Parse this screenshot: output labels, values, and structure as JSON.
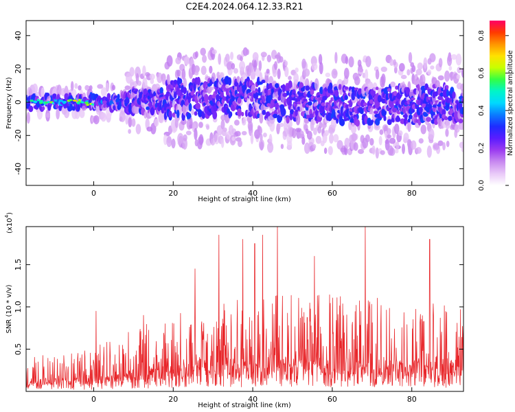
{
  "title": "C2E4.2024.064.12.33.R21",
  "colors": {
    "snr_line": "#e8262a",
    "colormap": [
      "#ffffff",
      "#e9c9f8",
      "#c88af0",
      "#9b3cf0",
      "#5a1cff",
      "#1e2cff",
      "#0a7cff",
      "#00d9ff",
      "#00f5c8",
      "#33ff44",
      "#c8ff00",
      "#ffe100",
      "#ff9400",
      "#ff3a00",
      "#ff0066"
    ]
  },
  "chart_data": [
    {
      "type": "heatmap",
      "xlabel": "Height of straight line (km)",
      "ylabel": "Frequency (Hz)",
      "xlim": [
        -17,
        93
      ],
      "ylim": [
        -50,
        49
      ],
      "xticks": [
        0,
        20,
        40,
        60,
        80
      ],
      "yticks": [
        -40,
        -20,
        0,
        20,
        40
      ],
      "colorbar": {
        "label": "Normalized spectral amplitude",
        "range": [
          0,
          0.88
        ],
        "ticks": [
          "0.0",
          "0.2",
          "0.4",
          "0.6",
          "0.8"
        ]
      },
      "ridges": [
        {
          "x": -15,
          "f": 0.0,
          "amp": 0.55
        },
        {
          "x": -12,
          "f": 0.5,
          "amp": 0.6
        },
        {
          "x": -9,
          "f": 0.0,
          "amp": 0.55
        },
        {
          "x": -5,
          "f": 0.5,
          "amp": 0.7
        },
        {
          "x": -2,
          "f": -1.0,
          "amp": 0.6
        },
        {
          "x": 5,
          "f": 0.0,
          "amp": 0.45
        },
        {
          "x": 12,
          "f": 3.0,
          "amp": 0.35
        },
        {
          "x": 18,
          "f": 4.0,
          "amp": 0.35
        },
        {
          "x": 28,
          "f": 12.0,
          "amp": 0.3
        },
        {
          "x": 42,
          "f": 8.0,
          "amp": 0.3
        },
        {
          "x": 47,
          "f": 0.0,
          "amp": 0.4
        },
        {
          "x": 52,
          "f": 5.0,
          "amp": 0.3
        },
        {
          "x": 65,
          "f": -10.0,
          "amp": 0.3
        },
        {
          "x": 75,
          "f": -8.0,
          "amp": 0.3
        },
        {
          "x": 91,
          "f": -3.0,
          "amp": 0.45
        }
      ]
    },
    {
      "type": "line",
      "xlabel": "Height of straight line (km)",
      "ylabel": "SNR (10 * v/v)",
      "exponent_label": "(x10",
      "exponent_power": "4",
      "exponent_close": ")",
      "xlim": [
        -17,
        93
      ],
      "ylim": [
        0,
        1.95
      ],
      "xticks": [
        0,
        20,
        40,
        60,
        80
      ],
      "yticks": [
        "0.5",
        "1.0",
        "1.5"
      ],
      "envelope": [
        {
          "x": -17,
          "y": 0.35
        },
        {
          "x": 0,
          "y": 0.45
        },
        {
          "x": 10,
          "y": 0.65
        },
        {
          "x": 18,
          "y": 0.75
        },
        {
          "x": 22,
          "y": 0.85
        },
        {
          "x": 30,
          "y": 0.95
        },
        {
          "x": 40,
          "y": 1.0
        },
        {
          "x": 60,
          "y": 1.0
        },
        {
          "x": 80,
          "y": 0.95
        },
        {
          "x": 93,
          "y": 0.85
        }
      ],
      "peaks": [
        {
          "x": 0.6,
          "y": 0.95
        },
        {
          "x": 12.5,
          "y": 0.9
        },
        {
          "x": 25.5,
          "y": 1.45
        },
        {
          "x": 31.5,
          "y": 1.85
        },
        {
          "x": 37.5,
          "y": 1.8
        },
        {
          "x": 40.5,
          "y": 1.75
        },
        {
          "x": 42.5,
          "y": 1.85
        },
        {
          "x": 46.2,
          "y": 1.95
        },
        {
          "x": 55.5,
          "y": 1.6
        },
        {
          "x": 68.3,
          "y": 1.95
        },
        {
          "x": 84.5,
          "y": 1.8
        }
      ]
    }
  ]
}
